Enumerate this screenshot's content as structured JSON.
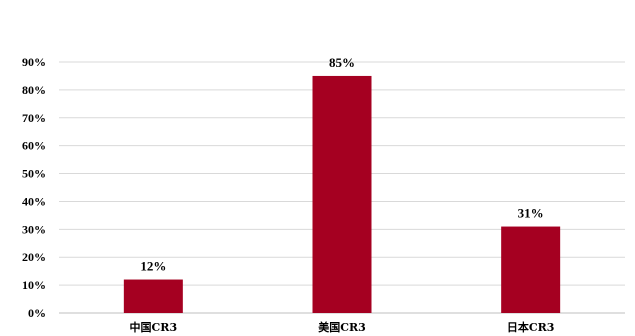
{
  "chart_data": {
    "type": "bar",
    "categories": [
      "中国CR3",
      "美国CR3",
      "日本CR3"
    ],
    "values": [
      12,
      85,
      31
    ],
    "data_labels": [
      "12%",
      "85%",
      "31%"
    ],
    "y_ticks": [
      "0%",
      "10%",
      "20%",
      "30%",
      "40%",
      "50%",
      "60%",
      "70%",
      "80%",
      "90%"
    ],
    "ylim": [
      0,
      90
    ],
    "title": "",
    "xlabel": "",
    "ylabel": "",
    "grid": true,
    "legend": "none",
    "bar_color": "#a50021"
  }
}
